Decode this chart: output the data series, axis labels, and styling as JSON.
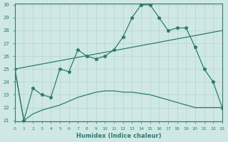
{
  "title": "",
  "xlabel": "Humidex (Indice chaleur)",
  "ylabel": "",
  "background_color": "#cfe8e5",
  "line_color": "#2e7b6e",
  "grid_color": "#b0d4cf",
  "ylim": [
    21,
    30
  ],
  "xlim": [
    0,
    23
  ],
  "yticks": [
    21,
    22,
    23,
    24,
    25,
    26,
    27,
    28,
    29,
    30
  ],
  "xticks": [
    0,
    1,
    2,
    3,
    4,
    5,
    6,
    7,
    8,
    9,
    10,
    11,
    12,
    13,
    14,
    15,
    16,
    17,
    18,
    19,
    20,
    21,
    22,
    23
  ],
  "series": [
    {
      "x": [
        0,
        1,
        2,
        3,
        4,
        5,
        6,
        7,
        8,
        9,
        10,
        11,
        12,
        13,
        14,
        15,
        16,
        17,
        18,
        19,
        20,
        21,
        22,
        23
      ],
      "y": [
        25,
        21,
        23.5,
        23,
        22.8,
        25,
        24.8,
        26.5,
        26,
        25.8,
        26,
        26.5,
        27.5,
        29,
        30,
        30,
        29,
        28,
        28.2,
        28.2,
        26.7,
        25,
        24,
        22
      ]
    },
    {
      "x": [
        0,
        23
      ],
      "y": [
        25,
        28
      ]
    },
    {
      "x": [
        0,
        1,
        2,
        3,
        4,
        5,
        6,
        7,
        8,
        9,
        10,
        11,
        12,
        13,
        14,
        15,
        16,
        17,
        18,
        19,
        20,
        21,
        22,
        23
      ],
      "y": [
        25,
        21,
        21.5,
        21.8,
        22,
        22.2,
        22.5,
        22.8,
        23,
        23.2,
        23.3,
        23.3,
        23.2,
        23.2,
        23.1,
        23.0,
        22.8,
        22.6,
        22.4,
        22.2,
        22,
        22,
        22,
        22
      ]
    }
  ],
  "series_markers": [
    true,
    false,
    false
  ],
  "series_linewidths": [
    0.9,
    0.9,
    0.9
  ]
}
